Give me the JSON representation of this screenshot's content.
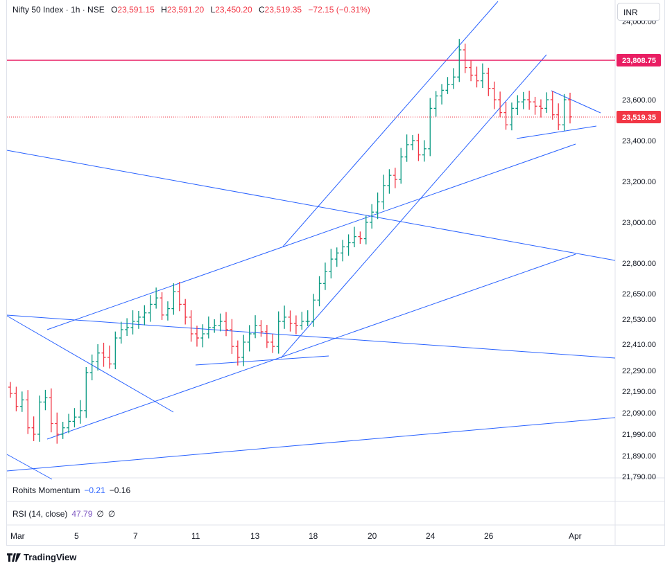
{
  "header": {
    "symbol": "Nifty 50 Index · 1h · NSE",
    "open_label": "O",
    "open": "23,591.15",
    "high_label": "H",
    "high": "23,591.20",
    "low_label": "L",
    "low": "23,450.20",
    "close_label": "C",
    "close": "23,519.35",
    "change": "−72.15 (−0.31%)"
  },
  "currency": "INR",
  "indicators": {
    "momentum": {
      "name": "Rohits Momentum",
      "v1": "−0.21",
      "v2": "−0.16"
    },
    "rsi": {
      "name": "RSI (14, close)",
      "value": "47.79",
      "z1": "∅",
      "z2": "∅"
    }
  },
  "branding": "TradingView",
  "colors": {
    "up": "#089981",
    "down": "#f23645",
    "trendline": "#2962ff",
    "level": "#e91e63",
    "last": "#f23645"
  },
  "chart_data": {
    "type": "ohlc",
    "price_ticks": [
      "24,000.00",
      "23,808.75",
      "23,600.00",
      "23,519.35",
      "23,400.00",
      "23,200.00",
      "23,000.00",
      "22,800.00",
      "22,650.00",
      "22,530.00",
      "22,410.00",
      "22,290.00",
      "22,190.00",
      "22,090.00",
      "21,990.00",
      "21,890.00",
      "21,790.00"
    ],
    "horizontal_level": {
      "label": "23,808.75",
      "value": 23808.75
    },
    "last_price": {
      "label": "23,519.35",
      "value": 23519.35
    },
    "x_ticks": [
      "Mar",
      "5",
      "7",
      "11",
      "13",
      "18",
      "20",
      "24",
      "26",
      "Apr"
    ],
    "series_close": [
      22180,
      22120,
      22150,
      22020,
      21990,
      22140,
      22160,
      22040,
      21990,
      22020,
      22050,
      22070,
      22100,
      22280,
      22330,
      22370,
      22350,
      22320,
      22440,
      22480,
      22490,
      22520,
      22540,
      22560,
      22600,
      22630,
      22550,
      22580,
      22660,
      22600,
      22540,
      22460,
      22440,
      22460,
      22490,
      22500,
      22520,
      22480,
      22400,
      22350,
      22420,
      22460,
      22500,
      22470,
      22420,
      22400,
      22520,
      22540,
      22510,
      22500,
      22520,
      22520,
      22620,
      22700,
      22760,
      22820,
      22850,
      22880,
      22900,
      22930,
      22920,
      23000,
      23050,
      23100,
      23180,
      23230,
      23210,
      23320,
      23380,
      23400,
      23330,
      23360,
      23560,
      23620,
      23650,
      23680,
      23720,
      23860,
      23770,
      23730,
      23700,
      23740,
      23660,
      23600,
      23540,
      23480,
      23560,
      23590,
      23600,
      23590,
      23570,
      23560,
      23600,
      23530,
      23480,
      23600,
      23520
    ]
  }
}
